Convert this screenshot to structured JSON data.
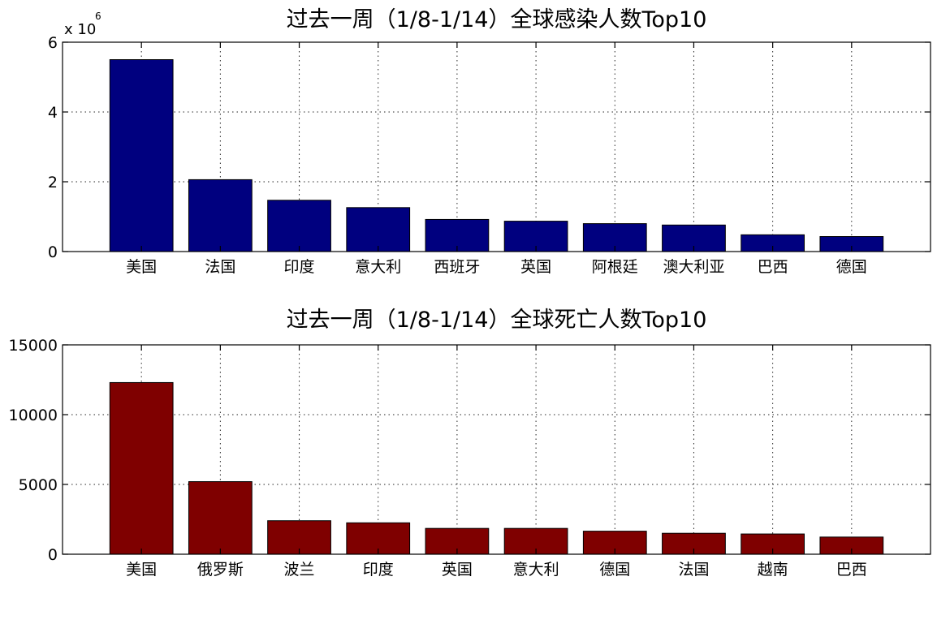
{
  "chart_data": [
    {
      "type": "bar",
      "title": "过去一周（1/8-1/14）全球感染人数Top10",
      "categories": [
        "美国",
        "法国",
        "印度",
        "意大利",
        "西班牙",
        "英国",
        "阿根廷",
        "澳大利亚",
        "巴西",
        "德国"
      ],
      "values": [
        5500000,
        2060000,
        1470000,
        1260000,
        920000,
        870000,
        800000,
        760000,
        480000,
        430000
      ],
      "ylim": [
        0,
        6000000
      ],
      "yticks": [
        0,
        2000000,
        4000000,
        6000000
      ],
      "ytick_labels": [
        "0",
        "2",
        "4",
        "6"
      ],
      "y_exponent": {
        "base": "x 10",
        "power": "6"
      },
      "xlabel": "",
      "ylabel": "",
      "bar_color": "#00007f",
      "grid": true
    },
    {
      "type": "bar",
      "title": "过去一周（1/8-1/14）全球死亡人数Top10",
      "categories": [
        "美国",
        "俄罗斯",
        "波兰",
        "印度",
        "英国",
        "意大利",
        "德国",
        "法国",
        "越南",
        "巴西"
      ],
      "values": [
        12300,
        5200,
        2400,
        2250,
        1850,
        1850,
        1650,
        1500,
        1450,
        1230
      ],
      "ylim": [
        0,
        15000
      ],
      "yticks": [
        0,
        5000,
        10000,
        15000
      ],
      "ytick_labels": [
        "0",
        "5000",
        "10000",
        "15000"
      ],
      "xlabel": "",
      "ylabel": "",
      "bar_color": "#7f0000",
      "grid": true
    }
  ]
}
